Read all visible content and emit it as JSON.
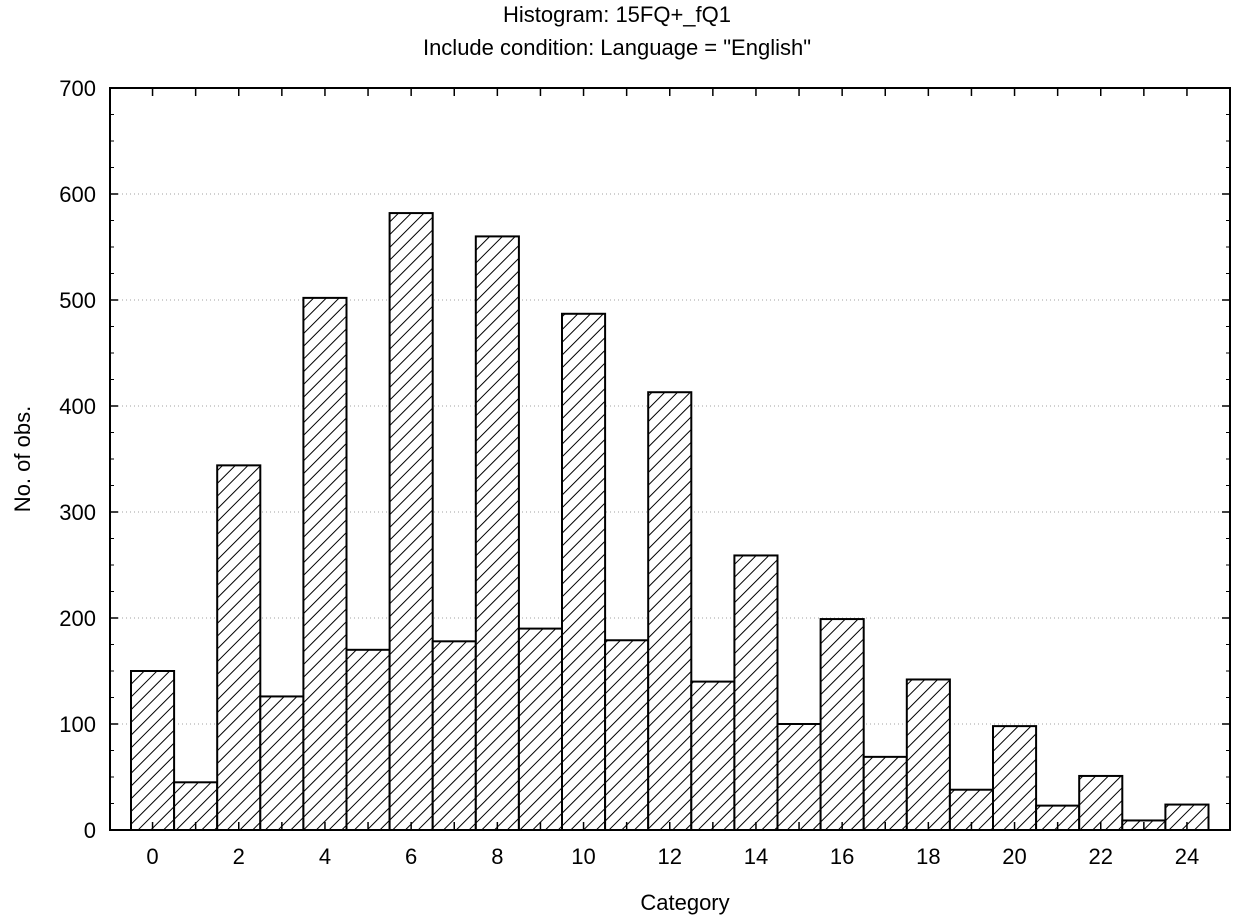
{
  "chart_data": {
    "type": "bar",
    "title": "Histogram: 15FQ+_fQ1",
    "subtitle": "Include condition: Language = \"English\"",
    "xlabel": "Category",
    "ylabel": "No. of obs.",
    "categories": [
      0,
      1,
      2,
      3,
      4,
      5,
      6,
      7,
      8,
      9,
      10,
      11,
      12,
      13,
      14,
      15,
      16,
      17,
      18,
      19,
      20,
      21,
      22,
      23,
      24
    ],
    "values": [
      150,
      45,
      344,
      126,
      502,
      170,
      582,
      178,
      560,
      190,
      487,
      179,
      413,
      140,
      259,
      100,
      199,
      69,
      142,
      38,
      98,
      23,
      51,
      9,
      24
    ],
    "x_tick_labels": [
      "0",
      "2",
      "4",
      "6",
      "8",
      "10",
      "12",
      "14",
      "16",
      "18",
      "20",
      "22",
      "24"
    ],
    "y_tick_labels": [
      "0",
      "100",
      "200",
      "300",
      "400",
      "500",
      "600",
      "700"
    ],
    "ylim": [
      0,
      700
    ],
    "grid": "horizontal dotted",
    "fill_pattern": "diagonal hatch",
    "colors": {
      "bar_stroke": "#000000",
      "hatch": "#000000",
      "grid": "#a0a0a0",
      "background": "#ffffff"
    }
  }
}
